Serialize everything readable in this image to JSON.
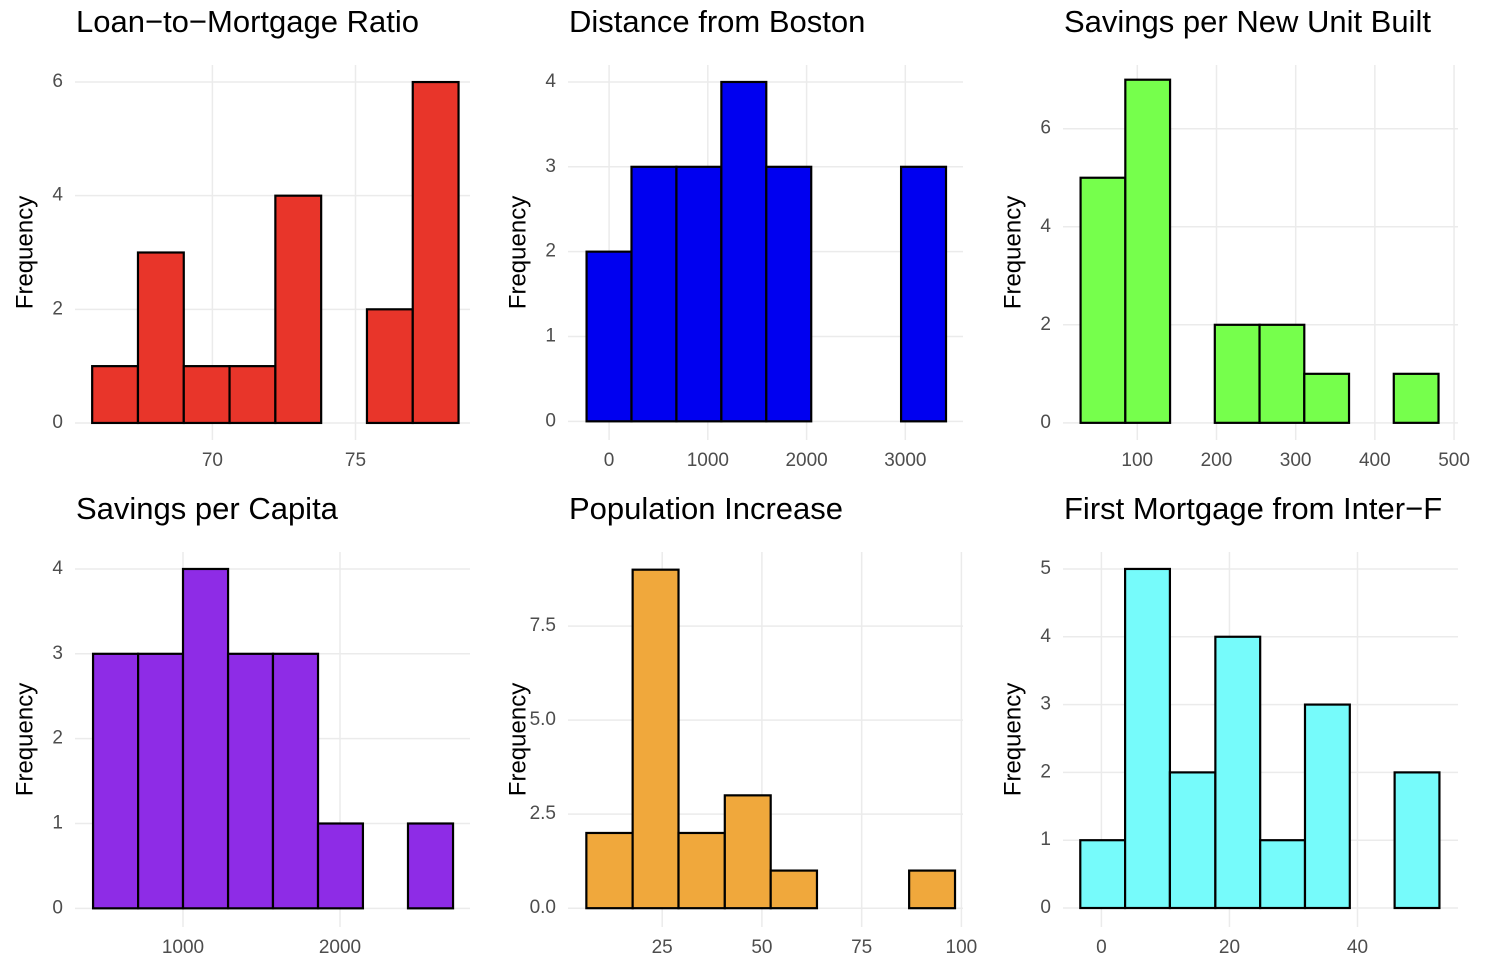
{
  "chart_data": [
    {
      "type": "histogram",
      "title": "Loan−to−Mortgage Ratio",
      "y_label": "Frequency",
      "color": "#e8352a",
      "grid": true,
      "bins": [
        65.8,
        67.4,
        69.0,
        70.6,
        72.2,
        73.8,
        75.4,
        77.0,
        78.6
      ],
      "values": [
        1,
        3,
        1,
        1,
        4,
        0,
        2,
        6
      ],
      "xlim": [
        65.2,
        79.0
      ],
      "xticks": [
        70,
        75
      ],
      "ylim": [
        -0.3,
        6.3
      ],
      "yticks": [
        0,
        2,
        4,
        6
      ]
    },
    {
      "type": "histogram",
      "title": "Distance from Boston",
      "y_label": "Frequency",
      "color": "#0000f0",
      "grid": true,
      "bins": [
        -228,
        227,
        682,
        1137,
        1592,
        2047,
        2502,
        2957,
        3412
      ],
      "values": [
        2,
        3,
        3,
        4,
        3,
        0,
        0,
        3
      ],
      "xlim": [
        -416,
        3584
      ],
      "xticks": [
        0,
        1000,
        2000,
        3000
      ],
      "ylim": [
        -0.22,
        4.2
      ],
      "yticks": [
        0,
        1,
        2,
        3,
        4
      ]
    },
    {
      "type": "histogram",
      "title": "Savings per New Unit Built",
      "y_label": "Frequency",
      "color": "#76ff4c",
      "grid": true,
      "bins": [
        28.4,
        84.9,
        141.4,
        197.9,
        254.4,
        310.9,
        367.4,
        423.9,
        480.4
      ],
      "values": [
        5,
        7,
        0,
        2,
        2,
        1,
        0,
        1
      ],
      "xlim": [
        6.2,
        505
      ],
      "xticks": [
        100,
        200,
        300,
        400,
        500
      ],
      "ylim": [
        -0.35,
        7.3
      ],
      "yticks": [
        0,
        2,
        4,
        6
      ]
    },
    {
      "type": "histogram",
      "title": "Savings per Capita",
      "y_label": "Frequency",
      "color": "#8e2ce6",
      "grid": true,
      "bins": [
        427,
        714,
        1000,
        1287,
        1573,
        1860,
        2146,
        2433,
        2720
      ],
      "values": [
        3,
        3,
        4,
        3,
        3,
        1,
        0,
        1
      ],
      "xlim": [
        312,
        2828
      ],
      "xticks": [
        1000,
        2000
      ],
      "ylim": [
        -0.22,
        4.2
      ],
      "yticks": [
        0,
        1,
        2,
        3,
        4
      ]
    },
    {
      "type": "histogram",
      "title": "Population Increase",
      "y_label": "Frequency",
      "color": "#f0a83c",
      "grid": true,
      "bins": [
        6.0,
        17.6,
        29.1,
        40.7,
        52.2,
        63.8,
        75.3,
        86.9,
        98.4
      ],
      "values": [
        2,
        9,
        2,
        3,
        1,
        0,
        0,
        1
      ],
      "xlim": [
        1.4,
        100.4
      ],
      "xticks": [
        25,
        50,
        75,
        100
      ],
      "ylim": [
        -0.5,
        9.47
      ],
      "yticks": [
        {
          "value": 0,
          "label": "0.0"
        },
        2.5,
        {
          "value": 5,
          "label": "5.0"
        },
        7.5
      ]
    },
    {
      "type": "histogram",
      "title": "First Mortgage from Inter−F",
      "y_label": "Frequency",
      "color": "#76fbfb",
      "grid": true,
      "bins": [
        -3.3,
        3.7,
        10.7,
        17.8,
        24.8,
        31.8,
        38.8,
        45.8,
        52.8
      ],
      "values": [
        1,
        5,
        2,
        4,
        1,
        3,
        0,
        2
      ],
      "xlim": [
        -6.0,
        55.7
      ],
      "xticks": [
        0,
        20,
        40
      ],
      "ylim": [
        -0.28,
        5.25
      ],
      "yticks": [
        0,
        1,
        2,
        3,
        4,
        5
      ]
    }
  ]
}
